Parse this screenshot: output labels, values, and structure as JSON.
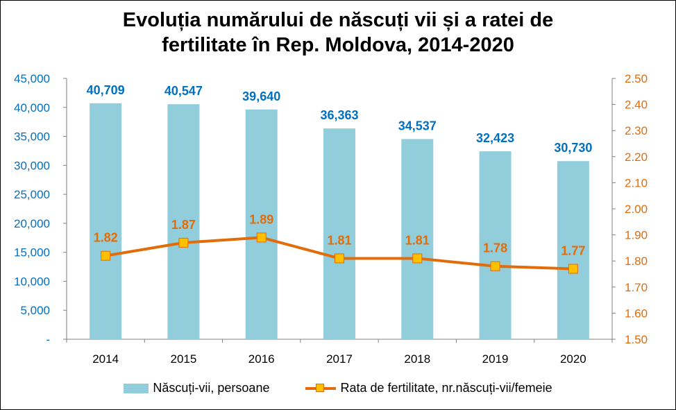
{
  "chart_data": {
    "type": "bar+line",
    "title_lines": [
      "Evoluția numărului de născuți vii și a ratei de",
      "fertilitate în Rep. Moldova, 2014-2020"
    ],
    "categories": [
      "2014",
      "2015",
      "2016",
      "2017",
      "2018",
      "2019",
      "2020"
    ],
    "series": [
      {
        "name": "Născuți-vii, persoane",
        "type": "bar",
        "axis": "left",
        "values": [
          40709,
          40547,
          39640,
          36363,
          34537,
          32423,
          30730
        ],
        "labels": [
          "40,709",
          "40,547",
          "39,640",
          "36,363",
          "34,537",
          "32,423",
          "30,730"
        ],
        "color": "#92CDDC",
        "label_color": "#0070C0"
      },
      {
        "name": "Rata de fertilitate, nr.născuți-vii/femeie",
        "type": "line",
        "axis": "right",
        "values": [
          1.82,
          1.87,
          1.89,
          1.81,
          1.81,
          1.78,
          1.77
        ],
        "labels": [
          "1.82",
          "1.87",
          "1.89",
          "1.81",
          "1.81",
          "1.78",
          "1.77"
        ],
        "color": "#E36C09",
        "marker_fill": "#FFC000",
        "label_color": "#E36C09"
      }
    ],
    "y_left": {
      "min": 0,
      "max": 45000,
      "step": 5000,
      "tick_labels": [
        "-",
        "5,000",
        "10,000",
        "15,000",
        "20,000",
        "25,000",
        "30,000",
        "35,000",
        "40,000",
        "45,000"
      ],
      "color": "#0070C0"
    },
    "y_right": {
      "min": 1.5,
      "max": 2.5,
      "step": 0.1,
      "tick_labels": [
        "1.50",
        "1.60",
        "1.70",
        "1.80",
        "1.90",
        "2.00",
        "2.10",
        "2.20",
        "2.30",
        "2.40",
        "2.50"
      ],
      "color": "#E36C09"
    },
    "grid": false,
    "legend_position": "bottom"
  }
}
